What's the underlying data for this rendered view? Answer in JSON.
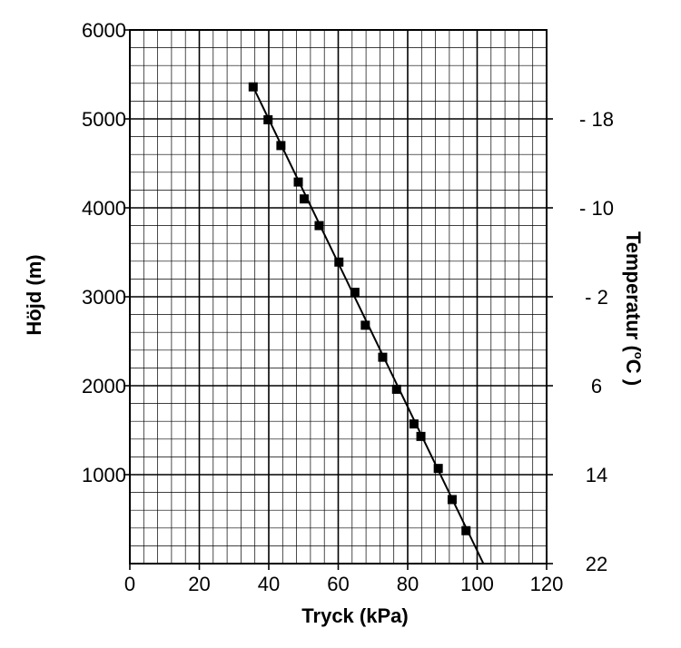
{
  "chart_data": {
    "type": "scatter",
    "xlabel": "Tryck (kPa)",
    "ylabel": "Höjd (m)",
    "y2label_main": "Temperatur (",
    "y2label_degree": "o",
    "y2label_unit": "C )",
    "xlim": [
      0,
      120
    ],
    "ylim": [
      0,
      6000
    ],
    "x_ticks": [
      "0",
      "20",
      "40",
      "60",
      "80",
      "100",
      "120"
    ],
    "y_ticks": [
      "1000",
      "2000",
      "3000",
      "4000",
      "5000",
      "6000"
    ],
    "y2_ticks": [
      "22",
      "14",
      "6",
      "- 2",
      "- 10",
      "- 18"
    ],
    "grid": true,
    "series": [
      {
        "x": [
          35.5,
          39.8,
          43.5,
          48.5,
          50.2,
          54.5,
          60.2,
          64.8,
          67.8,
          72.8,
          76.8,
          81.8,
          83.8,
          88.8,
          92.8,
          96.8
        ],
        "y": [
          5360,
          4990,
          4700,
          4290,
          4100,
          3800,
          3390,
          3050,
          2680,
          2320,
          1960,
          1570,
          1430,
          1070,
          720,
          370
        ],
        "marker": "square",
        "color": "#000000"
      }
    ],
    "fit_line": {
      "x": [
        35.5,
        101.8
      ],
      "y": [
        5360,
        0
      ]
    }
  }
}
